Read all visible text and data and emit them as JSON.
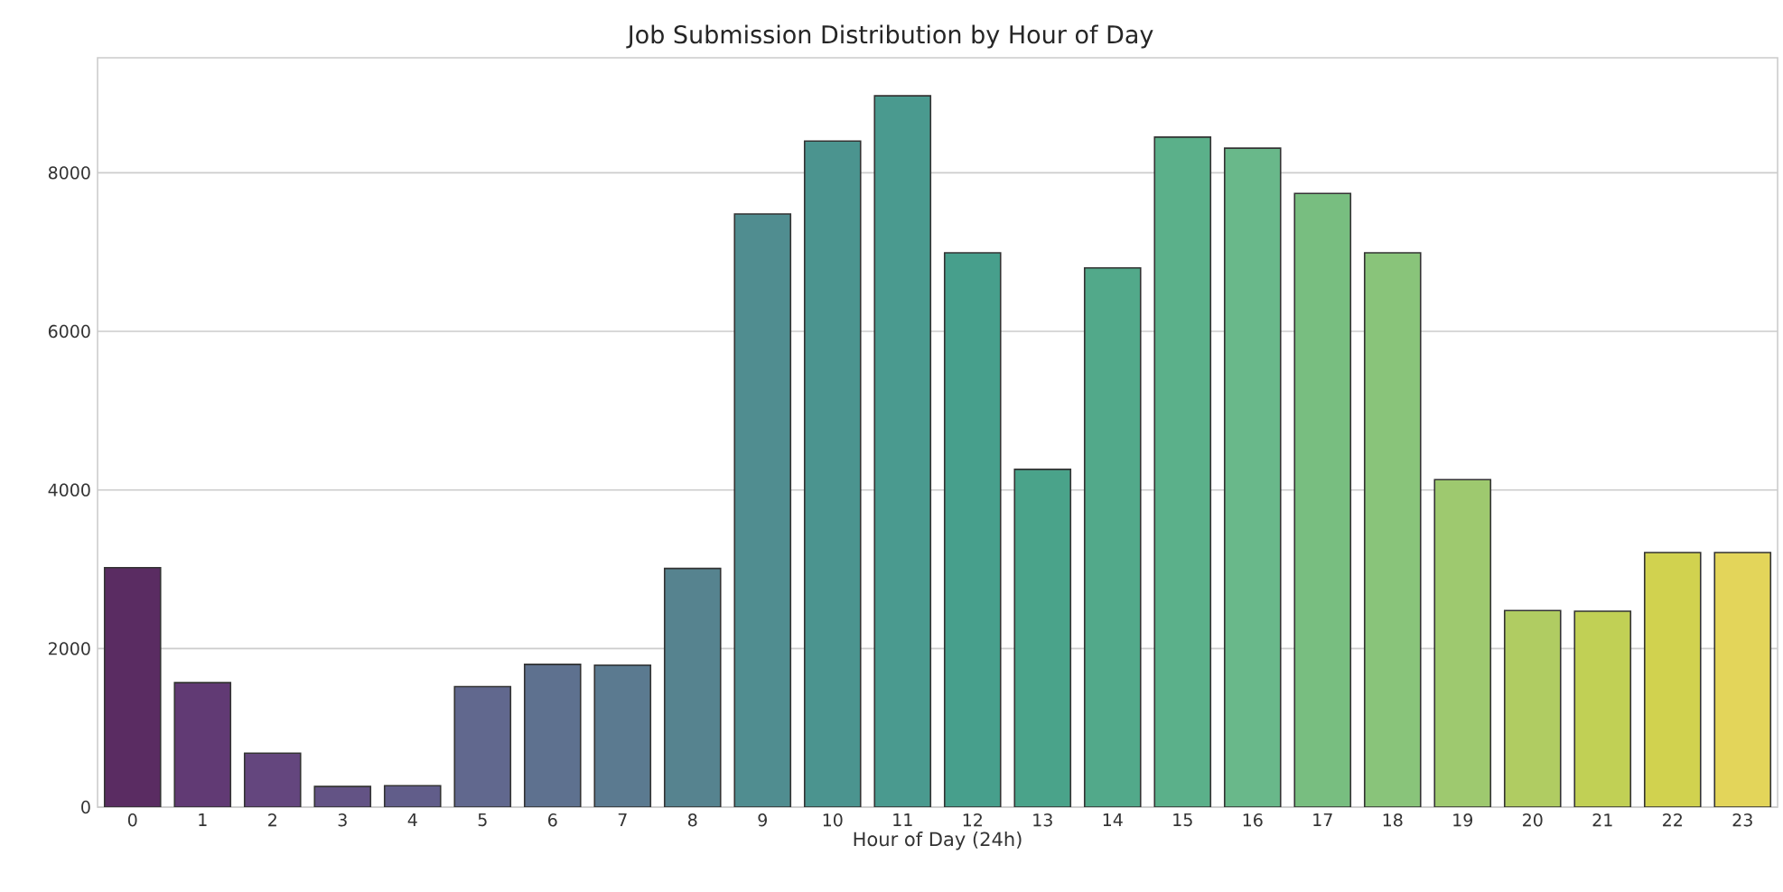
{
  "chart_data": {
    "type": "bar",
    "title": "Job Submission Distribution by Hour of Day",
    "xlabel": "Hour of Day (24h)",
    "categories": [
      "0",
      "1",
      "2",
      "3",
      "4",
      "5",
      "6",
      "7",
      "8",
      "9",
      "10",
      "11",
      "12",
      "13",
      "14",
      "15",
      "16",
      "17",
      "18",
      "19",
      "20",
      "21",
      "22",
      "23"
    ],
    "values": [
      3020,
      1570,
      680,
      260,
      270,
      1520,
      1800,
      1790,
      3010,
      7480,
      8400,
      8970,
      6990,
      4260,
      6800,
      8450,
      8310,
      7740,
      6990,
      4130,
      2480,
      2470,
      3210,
      3210
    ],
    "colors": [
      "#5a2c62",
      "#613a74",
      "#64467e",
      "#635385",
      "#615d8a",
      "#61688e",
      "#5e718f",
      "#5b7a90",
      "#56838f",
      "#508d90",
      "#4b948f",
      "#4a9a8f",
      "#479f8c",
      "#4aa38a",
      "#52a98a",
      "#5bb08a",
      "#69b88a",
      "#78be80",
      "#89c47a",
      "#9ec96f",
      "#b0cc62",
      "#c1d055",
      "#d1d24f",
      "#e3d55a"
    ],
    "ylim": [
      0,
      9450
    ],
    "yticks": [
      0,
      2000,
      4000,
      6000,
      8000
    ],
    "grid": "y"
  }
}
